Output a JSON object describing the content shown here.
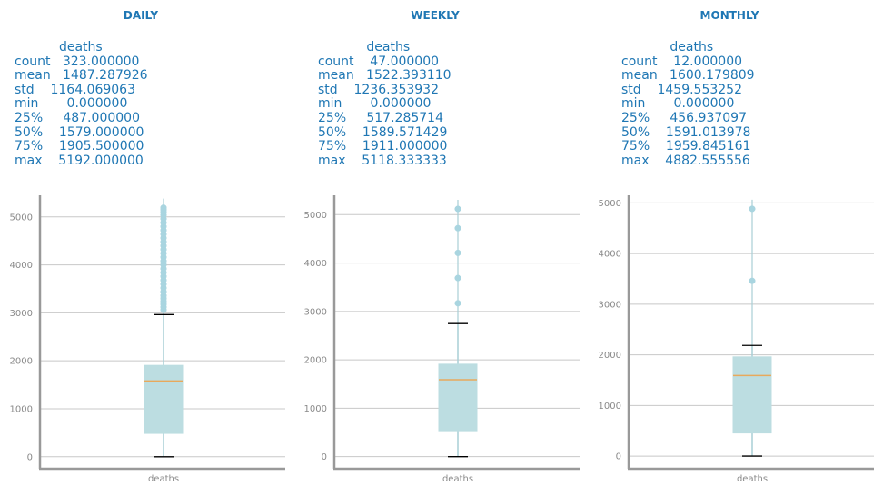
{
  "chart_data": [
    {
      "type": "box",
      "title": "DAILY",
      "stats_text": "           deaths\ncount   323.000000\nmean   1487.287926\nstd    1164.069063\nmin       0.000000\n25%     487.000000\n50%    1579.000000\n75%    1905.500000\nmax    5192.000000",
      "category": "deaths",
      "yticks": [
        0,
        1000,
        2000,
        3000,
        4000,
        5000
      ],
      "ylim": [
        -250,
        5450
      ],
      "grid": true,
      "stats": {
        "count": 323,
        "mean": 1487.287926,
        "std": 1164.069063,
        "min": 0,
        "q1": 487,
        "median": 1579,
        "q3": 1905.5,
        "max": 5192
      },
      "whisker_low": 0,
      "whisker_high": 2963,
      "outliers": [
        3060,
        3120,
        3180,
        3240,
        3300,
        3360,
        3440,
        3520,
        3600,
        3680,
        3760,
        3840,
        3920,
        4000,
        4080,
        4160,
        4240,
        4320,
        4400,
        4480,
        4560,
        4640,
        4720,
        4800,
        4880,
        4960,
        5040,
        5100,
        5150,
        5192
      ],
      "colors": {
        "box": "#bcdde1",
        "median": "#e8a95c",
        "whisker": "#a9cfd6",
        "cap": "#000000",
        "flier": "#a9d5e0",
        "grid": "#c8c8c8",
        "axis": "#999999",
        "title": "#1f77b4"
      }
    },
    {
      "type": "box",
      "title": "WEEKLY",
      "stats_text": "            deaths\ncount    47.000000\nmean   1522.393110\nstd    1236.353932\nmin       0.000000\n25%     517.285714\n50%    1589.571429\n75%    1911.000000\nmax    5118.333333",
      "category": "deaths",
      "yticks": [
        0,
        1000,
        2000,
        3000,
        4000,
        5000
      ],
      "ylim": [
        -250,
        5400
      ],
      "grid": true,
      "stats": {
        "count": 47,
        "mean": 1522.39311,
        "std": 1236.353932,
        "min": 0,
        "q1": 517.285714,
        "median": 1589.571429,
        "q3": 1911,
        "max": 5118.333333
      },
      "whisker_low": 0,
      "whisker_high": 2750,
      "outliers": [
        3170,
        3690,
        4210,
        4720,
        5118.333333
      ],
      "colors": {
        "box": "#bcdde1",
        "median": "#e8a95c",
        "whisker": "#a9cfd6",
        "cap": "#000000",
        "flier": "#a9d5e0",
        "grid": "#c8c8c8",
        "axis": "#999999",
        "title": "#1f77b4"
      }
    },
    {
      "type": "box",
      "title": "MONTHLY",
      "stats_text": "            deaths\ncount    12.000000\nmean   1600.179809\nstd    1459.553252\nmin       0.000000\n25%     456.937097\n50%    1591.013978\n75%    1959.845161\nmax    4882.555556",
      "category": "deaths",
      "yticks": [
        0,
        1000,
        2000,
        3000,
        4000,
        5000
      ],
      "ylim": [
        -250,
        5150
      ],
      "grid": true,
      "stats": {
        "count": 12,
        "mean": 1600.179809,
        "std": 1459.553252,
        "min": 0,
        "q1": 456.937097,
        "median": 1591.013978,
        "q3": 1959.845161,
        "max": 4882.555556
      },
      "whisker_low": 0,
      "whisker_high": 2185,
      "outliers": [
        3460,
        4882.555556
      ],
      "colors": {
        "box": "#bcdde1",
        "median": "#e8a95c",
        "whisker": "#a9cfd6",
        "cap": "#000000",
        "flier": "#a9d5e0",
        "grid": "#c8c8c8",
        "axis": "#999999",
        "title": "#1f77b4"
      }
    }
  ]
}
